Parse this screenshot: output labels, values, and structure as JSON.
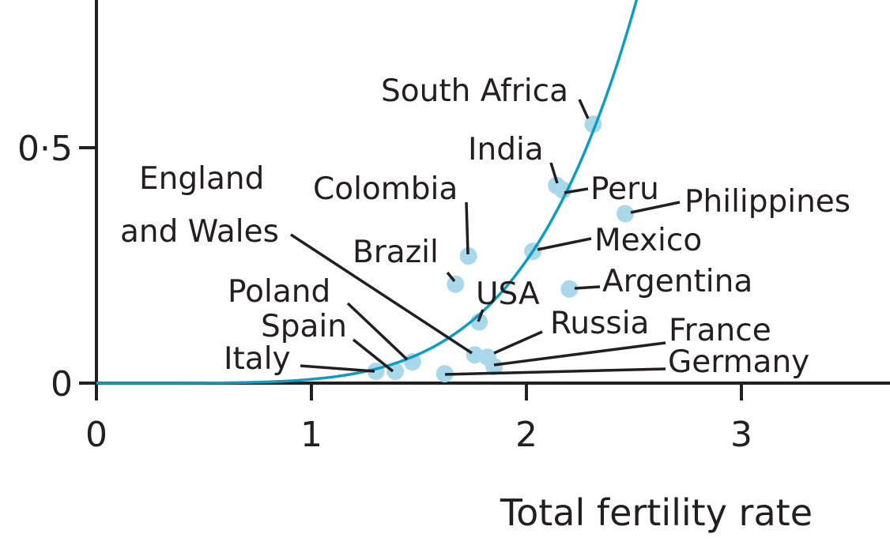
{
  "chart_data": {
    "type": "scatter",
    "title": "",
    "xlabel": "Total fertility rate",
    "ylabel": "",
    "xlim": [
      0,
      3.7
    ],
    "ylim": [
      0,
      0.82
    ],
    "x_ticks": [
      {
        "value": 0,
        "label": "0"
      },
      {
        "value": 1,
        "label": "1"
      },
      {
        "value": 2,
        "label": "2"
      },
      {
        "value": 3,
        "label": "3"
      }
    ],
    "y_ticks": [
      {
        "value": 0,
        "label": "0"
      },
      {
        "value": 0.5,
        "label": "0·5"
      }
    ],
    "grid": false,
    "legend": "none",
    "colors": {
      "points": "#a8d8ea",
      "curve": "#0e9cc0",
      "axes": "#231f20",
      "text": "#231f20"
    },
    "curve": {
      "function": "power",
      "coefficient": 0.00813,
      "exponent": 5,
      "x_range": [
        0,
        2.7
      ]
    },
    "points": [
      {
        "name": "South Africa",
        "x": 2.31,
        "y": 0.55
      },
      {
        "name": "India",
        "x": 2.14,
        "y": 0.42
      },
      {
        "name": "Peru",
        "x": 2.17,
        "y": 0.41
      },
      {
        "name": "Philippines",
        "x": 2.46,
        "y": 0.36
      },
      {
        "name": "Colombia",
        "x": 1.73,
        "y": 0.27
      },
      {
        "name": "Mexico",
        "x": 2.03,
        "y": 0.28
      },
      {
        "name": "Brazil",
        "x": 1.67,
        "y": 0.21
      },
      {
        "name": "Argentina",
        "x": 2.2,
        "y": 0.2
      },
      {
        "name": "USA",
        "x": 1.78,
        "y": 0.13
      },
      {
        "name": "Russia",
        "x": 1.82,
        "y": 0.055
      },
      {
        "name": "England and Wales",
        "x": 1.76,
        "y": 0.06
      },
      {
        "name": "Poland",
        "x": 1.47,
        "y": 0.045
      },
      {
        "name": "France",
        "x": 1.85,
        "y": 0.035
      },
      {
        "name": "Spain",
        "x": 1.39,
        "y": 0.025
      },
      {
        "name": "Italy",
        "x": 1.3,
        "y": 0.025
      },
      {
        "name": "Germany",
        "x": 1.62,
        "y": 0.02
      }
    ]
  },
  "labels": {
    "south_africa": "South Africa",
    "india": "India",
    "peru": "Peru",
    "philippines": "Philippines",
    "colombia": "Colombia",
    "england_line1": "England",
    "england_line2": "and Wales",
    "mexico": "Mexico",
    "brazil": "Brazil",
    "argentina": "Argentina",
    "usa": "USA",
    "poland": "Poland",
    "russia": "Russia",
    "france": "France",
    "spain": "Spain",
    "italy": "Italy",
    "germany": "Germany"
  }
}
